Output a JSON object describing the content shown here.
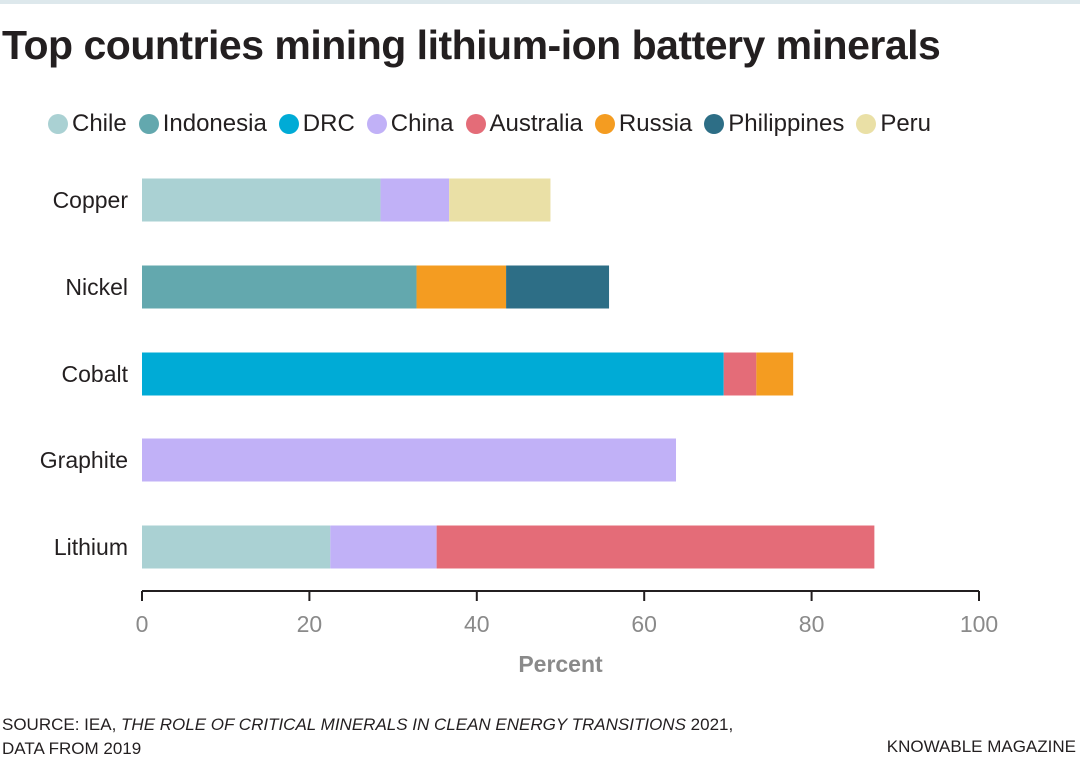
{
  "title": "Top countries mining lithium-ion battery minerals",
  "source": {
    "prefix": "SOURCE: IEA, ",
    "publication": "THE ROLE OF CRITICAL MINERALS IN CLEAN ENERGY TRANSITIONS",
    "suffix": " 2021,",
    "line2": "DATA FROM 2019"
  },
  "brand": "KNOWABLE MAGAZINE",
  "chart_data": {
    "type": "bar",
    "orientation": "horizontal",
    "stacked": true,
    "title": "Top countries mining lithium-ion battery minerals",
    "xlabel": "Percent",
    "ylabel": "",
    "xlim": [
      0,
      100
    ],
    "x_ticks": [
      0,
      20,
      40,
      60,
      80,
      100
    ],
    "grid": false,
    "legend_position": "top",
    "categories": [
      "Copper",
      "Nickel",
      "Cobalt",
      "Graphite",
      "Lithium"
    ],
    "series": [
      {
        "name": "Chile",
        "color": "#aad1d3",
        "values": [
          28.5,
          0,
          0,
          0,
          22.5
        ]
      },
      {
        "name": "Indonesia",
        "color": "#63a8ae",
        "values": [
          0,
          32.8,
          0,
          0,
          0
        ]
      },
      {
        "name": "DRC",
        "color": "#00abd6",
        "values": [
          0,
          0,
          69.5,
          0,
          0
        ]
      },
      {
        "name": "China",
        "color": "#c1b1f7",
        "values": [
          8.2,
          0,
          0,
          63.8,
          12.7
        ]
      },
      {
        "name": "Australia",
        "color": "#e46c78",
        "values": [
          0,
          0,
          3.9,
          0,
          52.3
        ]
      },
      {
        "name": "Russia",
        "color": "#f49c21",
        "values": [
          0,
          10.7,
          4.4,
          0,
          0
        ]
      },
      {
        "name": "Philippines",
        "color": "#2d6e86",
        "values": [
          0,
          12.3,
          0,
          0,
          0
        ]
      },
      {
        "name": "Peru",
        "color": "#eae0a6",
        "values": [
          12.1,
          0,
          0,
          0,
          0
        ]
      }
    ]
  }
}
